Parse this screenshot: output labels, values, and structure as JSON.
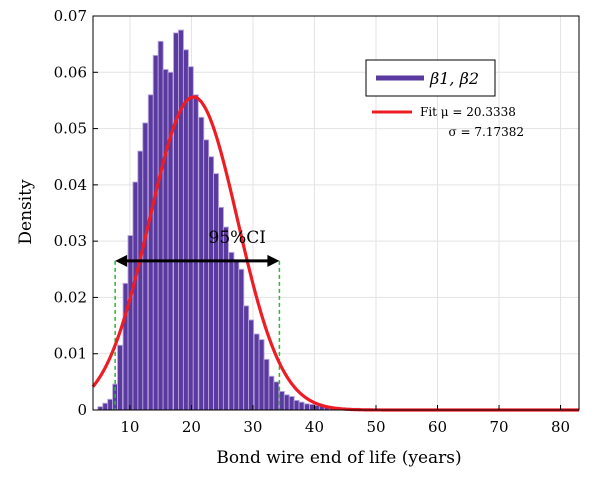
{
  "chart_data": {
    "type": "bar",
    "xlabel": "Bond wire end of life (years)",
    "ylabel": "Density",
    "xlim": [
      4,
      83
    ],
    "ylim": [
      0,
      0.07
    ],
    "xticks": [
      10,
      20,
      30,
      40,
      50,
      60,
      70,
      80
    ],
    "yticks": [
      0,
      0.01,
      0.02,
      0.03,
      0.04,
      0.05,
      0.06,
      0.07
    ],
    "ytick_labels": [
      "0",
      "0.01",
      "0.02",
      "0.03",
      "0.04",
      "0.05",
      "0.06",
      "0.07"
    ],
    "grid": true,
    "legend_position": "top-right",
    "bar_color": "#5a3a9e",
    "fit_color": "#ee1c24",
    "ci_line_color": "#2db82d",
    "histogram": {
      "name": "β1, β2",
      "bin_width": 0.82,
      "bin_centers": [
        5.2,
        6.0,
        6.8,
        7.6,
        8.4,
        9.3,
        10.1,
        10.9,
        11.7,
        12.5,
        13.4,
        14.2,
        15.0,
        15.8,
        16.6,
        17.5,
        18.3,
        19.1,
        19.9,
        20.7,
        21.6,
        22.4,
        23.2,
        24.0,
        24.8,
        25.6,
        26.5,
        27.3,
        28.1,
        28.9,
        29.7,
        30.6,
        31.4,
        32.2,
        33.0,
        33.8,
        34.7,
        35.5,
        36.3,
        37.1,
        37.9,
        38.8,
        39.6,
        40.4,
        41.2,
        42.0,
        42.9,
        43.7,
        44.5,
        45.3,
        46.1,
        47.0,
        47.8,
        48.6,
        49.4,
        50.2,
        51.1,
        51.9,
        52.7,
        53.5,
        54.3,
        55.2,
        56.0,
        56.8,
        57.6,
        58.4,
        59.3,
        60.1,
        60.9,
        61.7,
        62.5,
        63.4,
        64.2,
        65.0,
        65.8,
        66.6,
        67.5,
        68.3,
        69.1,
        69.9,
        70.7,
        71.6,
        72.4,
        73.2,
        74.0,
        74.8,
        75.7,
        76.5,
        77.3,
        78.1,
        78.9,
        79.8,
        80.6,
        81.4,
        82.2
      ],
      "densities": [
        0.0006,
        0.0012,
        0.0019,
        0.0046,
        0.0115,
        0.0225,
        0.031,
        0.0405,
        0.046,
        0.051,
        0.056,
        0.063,
        0.0655,
        0.0605,
        0.06,
        0.067,
        0.0675,
        0.064,
        0.061,
        0.056,
        0.052,
        0.048,
        0.045,
        0.042,
        0.036,
        0.0325,
        0.028,
        0.0265,
        0.025,
        0.0185,
        0.016,
        0.0135,
        0.0125,
        0.009,
        0.006,
        0.005,
        0.0033,
        0.0027,
        0.0024,
        0.0017,
        0.0014,
        0.0011,
        0.001,
        0.0008,
        0.0007,
        0.0006,
        0.0005,
        0.0005,
        0.0004,
        0.0003,
        0.0003,
        0.0003,
        0.0002,
        0.0002,
        0.0002,
        0.0002,
        0.0001,
        0.0001,
        0.0001,
        0.0001,
        0.0001,
        0.0001,
        0.0001,
        0.0001,
        0.0001,
        0.0001,
        0.0001,
        0.0001,
        0.0001,
        0.0001,
        0.0001,
        0.0001,
        0.0001,
        0.0001,
        0.0001,
        0.0001,
        0.0001,
        0.0001,
        0.0001,
        0.0001,
        0.0001,
        0.0001,
        0.0001,
        0.0001,
        0.0001,
        0.0001,
        0.0001,
        0.0001,
        0.0001,
        0.0001,
        0.0001,
        0.0001,
        0.0001,
        0.0001,
        0.0001
      ]
    },
    "fit": {
      "mu": 20.3338,
      "sigma": 7.17382,
      "label_line1": "Fit μ = 20.3338",
      "label_line2": "σ = 7.17382"
    },
    "ci": {
      "label": "95%CI",
      "lower": 7.6,
      "upper": 34.3,
      "arrow_y": 0.0265
    }
  }
}
